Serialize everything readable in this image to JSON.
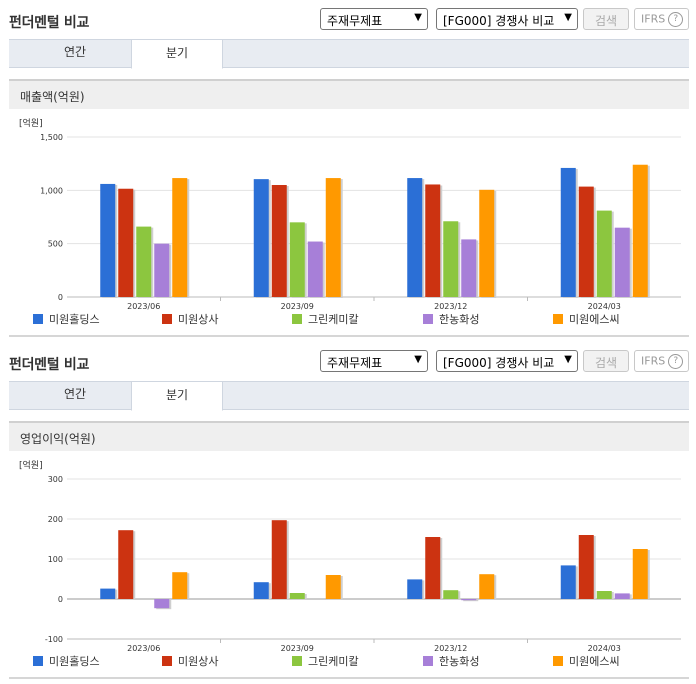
{
  "panels": [
    {
      "title": "펀더멘털 비교",
      "select1": "주재무제표",
      "select2": "[FG000] 경쟁사 비교",
      "search_label": "검색",
      "ifrs_label": "IFRS",
      "ifrs_help": "?",
      "tabs": [
        "연간",
        "분기"
      ],
      "active_tab": 1,
      "section_title": "매출액(억원)",
      "chart_data": {
        "type": "bar",
        "unit_label": "[억원]",
        "categories": [
          "2023/06",
          "2023/09",
          "2023/12",
          "2024/03"
        ],
        "ylim": [
          0,
          1500
        ],
        "yticks": [
          0,
          500,
          1000,
          1500
        ],
        "ytick_labels": [
          "0",
          "500",
          "1,000",
          "1,500"
        ],
        "grid": true,
        "legend_position": "bottom",
        "series": [
          {
            "name": "미원홀딩스",
            "color": "#2b6fd6",
            "values": [
              1060,
              1105,
              1115,
              1210
            ]
          },
          {
            "name": "미원상사",
            "color": "#cc3311",
            "values": [
              1015,
              1050,
              1055,
              1035
            ]
          },
          {
            "name": "그린케미칼",
            "color": "#8cc63f",
            "values": [
              660,
              700,
              710,
              810
            ]
          },
          {
            "name": "한농화성",
            "color": "#a77fd8",
            "values": [
              500,
              520,
              540,
              650
            ]
          },
          {
            "name": "미원에스씨",
            "color": "#ff9900",
            "values": [
              1115,
              1115,
              1005,
              1240
            ]
          }
        ]
      }
    },
    {
      "title": "펀더멘털 비교",
      "select1": "주재무제표",
      "select2": "[FG000] 경쟁사 비교",
      "search_label": "검색",
      "ifrs_label": "IFRS",
      "ifrs_help": "?",
      "tabs": [
        "연간",
        "분기"
      ],
      "active_tab": 1,
      "section_title": "영업이익(억원)",
      "chart_data": {
        "type": "bar",
        "unit_label": "[억원]",
        "categories": [
          "2023/06",
          "2023/09",
          "2023/12",
          "2024/03"
        ],
        "ylim": [
          -100,
          300
        ],
        "yticks": [
          -100,
          0,
          100,
          200,
          300
        ],
        "ytick_labels": [
          "-100",
          "0",
          "100",
          "200",
          "300"
        ],
        "grid": true,
        "legend_position": "bottom",
        "series": [
          {
            "name": "미원홀딩스",
            "color": "#2b6fd6",
            "values": [
              26,
              42,
              49,
              84
            ]
          },
          {
            "name": "미원상사",
            "color": "#cc3311",
            "values": [
              172,
              197,
              155,
              160
            ]
          },
          {
            "name": "그린케미칼",
            "color": "#8cc63f",
            "values": [
              0,
              15,
              22,
              20
            ]
          },
          {
            "name": "한농화성",
            "color": "#a77fd8",
            "values": [
              -23,
              0,
              -3,
              14
            ]
          },
          {
            "name": "미원에스씨",
            "color": "#ff9900",
            "values": [
              67,
              60,
              62,
              125
            ]
          }
        ]
      }
    }
  ]
}
